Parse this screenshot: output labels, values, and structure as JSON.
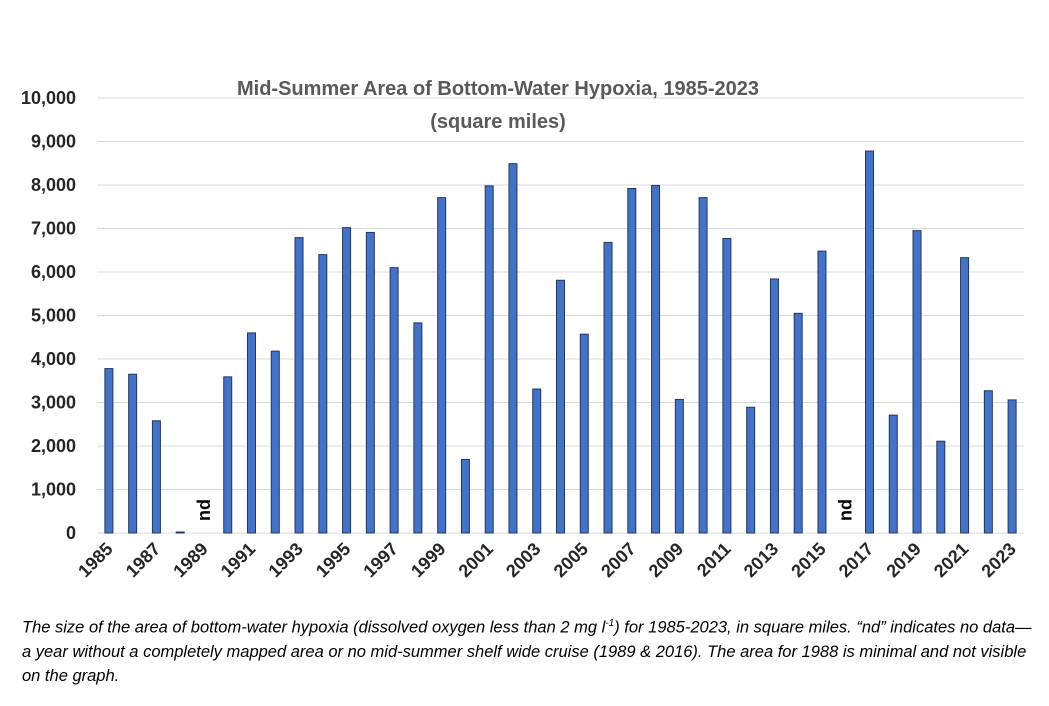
{
  "chart_data": {
    "type": "bar",
    "title": "Mid-Summer Area of Bottom-Water Hypoxia, 1985-2023",
    "subtitle": "(square miles)",
    "xlabel": "",
    "ylabel": "",
    "ylim": [
      0,
      10000
    ],
    "ytick_labels": [
      "0",
      "1,000",
      "2,000",
      "3,000",
      "4,000",
      "5,000",
      "6,000",
      "7,000",
      "8,000",
      "9,000",
      "10,000"
    ],
    "grid": true,
    "categories": [
      "1985",
      "1986",
      "1987",
      "1988",
      "1989",
      "1990",
      "1991",
      "1992",
      "1993",
      "1994",
      "1995",
      "1996",
      "1997",
      "1998",
      "1999",
      "2000",
      "2001",
      "2002",
      "2003",
      "2004",
      "2005",
      "2006",
      "2007",
      "2008",
      "2009",
      "2010",
      "2011",
      "2012",
      "2013",
      "2014",
      "2015",
      "2016",
      "2017",
      "2018",
      "2019",
      "2020",
      "2021",
      "2022",
      "2023"
    ],
    "xtick_labels": [
      "1985",
      "1987",
      "1989",
      "1991",
      "1993",
      "1995",
      "1997",
      "1999",
      "2001",
      "2003",
      "2005",
      "2007",
      "2009",
      "2011",
      "2013",
      "2015",
      "2017",
      "2019",
      "2021",
      "2023"
    ],
    "values": [
      3780,
      3650,
      2580,
      15,
      null,
      3590,
      4600,
      4180,
      6790,
      6400,
      7020,
      6910,
      6100,
      4830,
      7710,
      1690,
      7980,
      8490,
      3310,
      5810,
      4570,
      6680,
      7920,
      7990,
      3070,
      7710,
      6770,
      2890,
      5840,
      5050,
      6480,
      null,
      8780,
      2710,
      6950,
      2110,
      6330,
      3270,
      3060
    ],
    "no_data_label": "nd",
    "bar_color": "#4472c4"
  },
  "caption": {
    "part1": "The size of the area of bottom-water hypoxia (dissolved oxygen less than 2 mg l",
    "superscript": "-1",
    "part2": ") for 1985-2023, in square miles. “nd” indicates no data—a year without a completely mapped area or no mid-summer shelf wide cruise (1989 & 2016). The area for 1988 is minimal and not visible on the graph."
  }
}
